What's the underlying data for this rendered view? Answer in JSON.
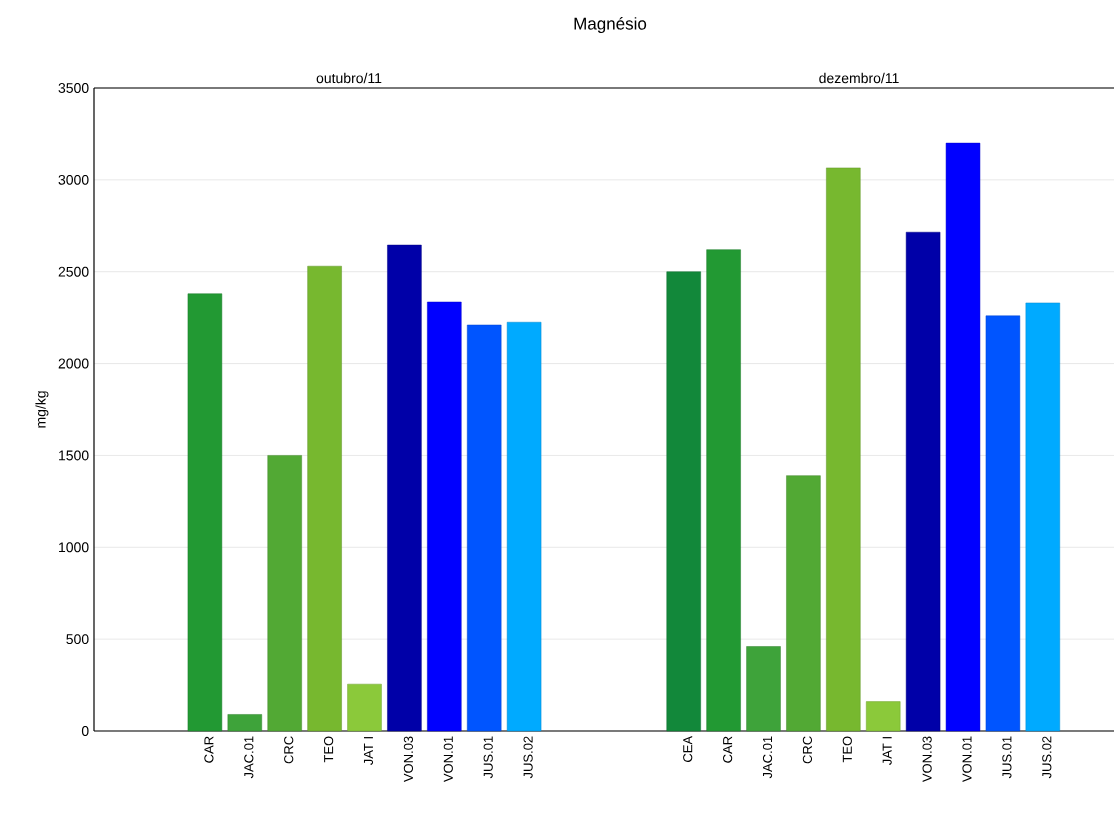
{
  "chart_data": {
    "type": "bar",
    "title": "Magnésio",
    "ylabel": "mg/kg",
    "annotations": [
      "outubro/11",
      "dezembro/11"
    ],
    "categories": [
      null,
      "CAR",
      "JAC.01",
      "CRC",
      "TEO",
      "JAT I",
      "VON.03",
      "VON.01",
      "JUS.01",
      "JUS.02",
      null,
      null,
      null,
      "CEA",
      "CAR",
      "JAC.01",
      "CRC",
      "TEO",
      "JAT I",
      "VON.03",
      "VON.01",
      "JUS.01",
      "JUS.02"
    ],
    "values": [
      null,
      2380,
      90,
      1500,
      2530,
      255,
      2645,
      2335,
      2210,
      2225,
      null,
      null,
      null,
      2500,
      2620,
      460,
      1390,
      3065,
      160,
      2715,
      3200,
      2260,
      2330
    ],
    "colors": [
      "#12883a",
      "#229933",
      "#3ea33a",
      "#52a934",
      "#77b82f",
      "#8bc93a",
      "#0000a8",
      "#0000ff",
      "#0055ff",
      "#00aaff",
      "#ffffff",
      "#ffffff",
      "#ffffff",
      "#12883a",
      "#229933",
      "#3ea33a",
      "#52a934",
      "#77b82f",
      "#8bc93a",
      "#0000a8",
      "#0000ff",
      "#0055ff",
      "#00aaff"
    ],
    "ylim": [
      0,
      3500
    ],
    "yticks": [
      0,
      500,
      1000,
      1500,
      2000,
      2500,
      3000,
      3500
    ],
    "grid": "y"
  }
}
